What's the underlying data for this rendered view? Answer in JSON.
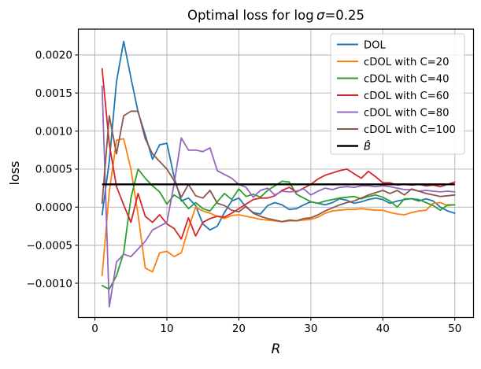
{
  "figure": {
    "kind": "matplotlib line figure",
    "background": "#ffffff"
  },
  "chart_data": {
    "type": "line",
    "title": "Optimal loss for log σ=0.25",
    "title_parts": {
      "pre": "Optimal loss for log ",
      "sym": "σ",
      "post": "=0.25"
    },
    "xlabel": "R",
    "ylabel": "loss",
    "xlim": [
      -2.3,
      52.6
    ],
    "ylim": [
      -0.00145,
      0.00234
    ],
    "grid": true,
    "grid_color": "#b0b0b0",
    "legend_position": "upper right",
    "xticks": [
      0,
      10,
      20,
      30,
      40,
      50
    ],
    "xtick_labels": [
      "0",
      "10",
      "20",
      "30",
      "40",
      "50"
    ],
    "yticks": [
      0.002,
      0.0015,
      0.001,
      0.0005,
      0.0,
      -0.0005,
      -0.001
    ],
    "ytick_labels": [
      "0.0020",
      "0.0015",
      "0.0010",
      "0.0005",
      "0.0000",
      "−0.0005",
      "−0.0010"
    ],
    "x": [
      1,
      2,
      3,
      4,
      5,
      6,
      7,
      8,
      9,
      10,
      11,
      12,
      13,
      14,
      15,
      16,
      17,
      18,
      19,
      20,
      21,
      22,
      23,
      24,
      25,
      26,
      27,
      28,
      29,
      30,
      31,
      32,
      33,
      34,
      35,
      36,
      37,
      38,
      39,
      40,
      41,
      42,
      43,
      44,
      45,
      46,
      47,
      48,
      49,
      50
    ],
    "series": [
      {
        "name": "DOL",
        "color": "#1f77b4",
        "values": [
          -0.0001,
          0.0006,
          0.00165,
          0.00218,
          0.0017,
          0.00125,
          0.00095,
          0.00063,
          0.00082,
          0.00084,
          0.0004,
          8e-05,
          0.00012,
          2e-05,
          -0.00022,
          -0.0003,
          -0.00025,
          -7e-05,
          8e-05,
          0.00012,
          0.0,
          -7e-05,
          -9e-05,
          2e-05,
          6e-05,
          3e-05,
          -3e-05,
          -2e-05,
          3e-05,
          7e-05,
          5e-05,
          3e-05,
          6e-05,
          0.00011,
          9e-05,
          5e-05,
          7e-05,
          0.0001,
          0.00012,
          0.0001,
          5e-05,
          8e-05,
          0.0001,
          0.00011,
          8e-05,
          0.00011,
          8e-05,
          0.0,
          -5e-05,
          -8e-05
        ]
      },
      {
        "name": "cDOL with C=20",
        "color": "#ff7f0e",
        "values": [
          -0.0009,
          0.0002,
          0.00088,
          0.0009,
          0.0005,
          -0.0001,
          -0.0008,
          -0.00085,
          -0.0006,
          -0.00058,
          -0.00065,
          -0.0006,
          -0.00028,
          0.0,
          -5e-05,
          -8e-05,
          -0.00012,
          -0.00015,
          -0.00011,
          -0.0001,
          -0.00012,
          -0.00014,
          -0.00016,
          -0.00017,
          -0.00018,
          -0.00019,
          -0.00018,
          -0.00018,
          -0.00017,
          -0.00016,
          -0.00013,
          -8e-05,
          -5e-05,
          -4e-05,
          -3e-05,
          -3e-05,
          -2e-05,
          -3e-05,
          -4e-05,
          -4e-05,
          -7e-05,
          -9e-05,
          -0.0001,
          -7e-05,
          -5e-05,
          -4e-05,
          5e-05,
          6e-05,
          2e-05,
          3e-05
        ]
      },
      {
        "name": "cDOL with C=40",
        "color": "#2ca02c",
        "values": [
          -0.00103,
          -0.00108,
          -0.0009,
          -0.0006,
          0.00012,
          0.0005,
          0.00038,
          0.00028,
          0.0002,
          4e-05,
          0.00016,
          0.0001,
          -2e-05,
          6e-05,
          -2e-05,
          -5e-05,
          7e-05,
          0.00018,
          0.0001,
          0.00024,
          0.00014,
          0.00017,
          0.00013,
          0.00022,
          0.00028,
          0.00034,
          0.00033,
          0.00017,
          0.00012,
          7e-05,
          5e-05,
          8e-05,
          0.0001,
          0.00012,
          0.00013,
          0.00014,
          0.00011,
          0.00014,
          0.00016,
          0.00013,
          8e-05,
          0.0,
          0.00011,
          0.00011,
          0.0001,
          6e-05,
          2e-05,
          -4e-05,
          3e-05,
          3e-05
        ]
      },
      {
        "name": "cDOL with C=60",
        "color": "#d62728",
        "values": [
          0.00182,
          0.00083,
          0.00027,
          3e-05,
          -0.0002,
          0.00018,
          -0.00012,
          -0.0002,
          -0.0001,
          -0.00022,
          -0.00028,
          -0.00042,
          -0.00014,
          -0.00038,
          -0.0002,
          -0.00015,
          -0.00012,
          -0.00013,
          -8e-05,
          -2e-05,
          4e-05,
          0.0001,
          0.00012,
          0.00012,
          0.00015,
          0.00022,
          0.00026,
          0.0002,
          0.00025,
          0.0003,
          0.00037,
          0.00042,
          0.00045,
          0.00048,
          0.0005,
          0.00044,
          0.00038,
          0.00047,
          0.0004,
          0.00032,
          0.00032,
          0.00029,
          0.0003,
          0.00029,
          0.0003,
          0.00028,
          0.00029,
          0.00027,
          0.0003,
          0.00033
        ]
      },
      {
        "name": "cDOL with C=80",
        "color": "#9467bd",
        "values": [
          0.00159,
          -0.00131,
          -0.00072,
          -0.00062,
          -0.00065,
          -0.00055,
          -0.00045,
          -0.0003,
          -0.00025,
          -0.0002,
          0.0003,
          0.00091,
          0.00075,
          0.00075,
          0.00073,
          0.00078,
          0.00048,
          0.00043,
          0.00038,
          0.0003,
          0.00026,
          0.00013,
          0.00022,
          0.00025,
          0.00016,
          0.00021,
          0.0002,
          0.00021,
          0.00024,
          0.00016,
          0.00021,
          0.00025,
          0.00023,
          0.00026,
          0.00027,
          0.00026,
          0.00028,
          0.00028,
          0.00027,
          0.00028,
          0.00027,
          0.00025,
          0.00023,
          0.00023,
          0.00021,
          0.00022,
          0.00021,
          0.0002,
          0.00021,
          0.0002
        ]
      },
      {
        "name": "cDOL with C=100",
        "color": "#8c564b",
        "values": [
          5e-05,
          0.0012,
          0.0007,
          0.0012,
          0.00126,
          0.00126,
          0.0009,
          0.0007,
          0.0006,
          0.0005,
          0.00035,
          0.00013,
          0.0003,
          0.00015,
          0.00012,
          0.00022,
          5e-05,
          2e-05,
          -4e-05,
          -6e-05,
          1e-05,
          -8e-05,
          -0.00012,
          -0.00015,
          -0.00017,
          -0.00019,
          -0.00017,
          -0.00018,
          -0.00015,
          -0.00014,
          -0.0001,
          -5e-05,
          -1e-05,
          3e-05,
          6e-05,
          8e-05,
          0.00012,
          0.00016,
          0.00019,
          0.00022,
          0.00018,
          0.00022,
          0.00016,
          0.00024,
          0.00021,
          0.00018,
          0.00016,
          0.00014,
          0.00015,
          0.00016
        ]
      },
      {
        "name": "B̂",
        "color": "#000000",
        "math": true,
        "constant": 0.0003,
        "linewidth": 2.4
      }
    ]
  }
}
